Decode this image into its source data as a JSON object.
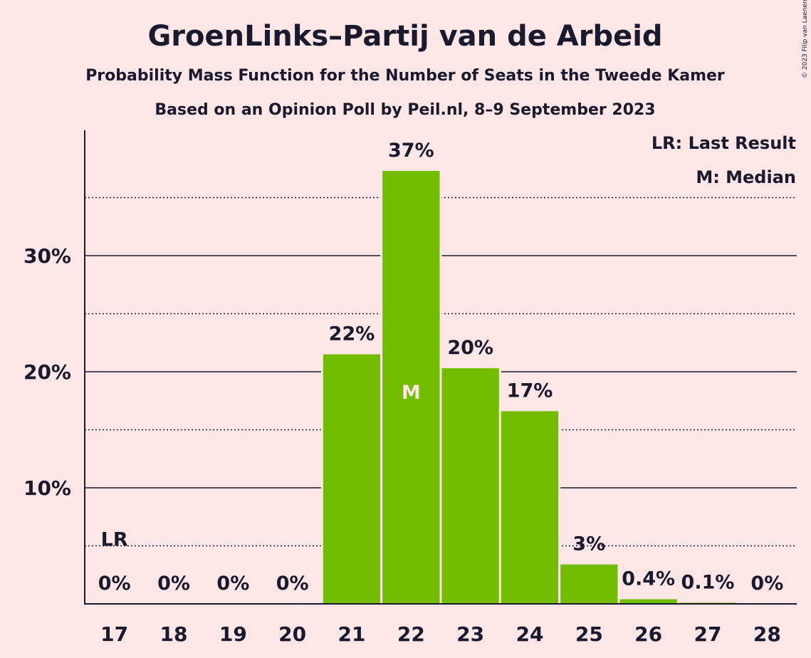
{
  "title": "GroenLinks–Partij van de Arbeid",
  "subtitle1": "Probability Mass Function for the Number of Seats in the Tweede Kamer",
  "subtitle2": "Based on an Opinion Poll by Peil.nl, 8–9 September 2023",
  "copyright": "© 2023 Filip van Laenen",
  "legend": {
    "lr": "LR: Last Result",
    "median": "M: Median"
  },
  "colors": {
    "bar": "#73BD00",
    "background": "#FCE6E6",
    "text": "#1a1a2e",
    "median_label": "#FCE6E6"
  },
  "chart_data": {
    "type": "bar",
    "categories": [
      "17",
      "18",
      "19",
      "20",
      "21",
      "22",
      "23",
      "24",
      "25",
      "26",
      "27",
      "28"
    ],
    "values": [
      0,
      0,
      0,
      0,
      21.5,
      37.3,
      20.3,
      16.6,
      3.4,
      0.4,
      0.1,
      0
    ],
    "value_labels": [
      "0%",
      "0%",
      "0%",
      "0%",
      "22%",
      "37%",
      "20%",
      "17%",
      "3%",
      "0.4%",
      "0.1%",
      "0%"
    ],
    "ylim": [
      0,
      40
    ],
    "yticks": [
      10,
      20,
      30
    ],
    "ytick_labels": [
      "10%",
      "20%",
      "30%"
    ],
    "minor_gridlines": [
      5,
      15,
      25,
      35
    ],
    "last_result": {
      "category": "17",
      "label": "LR",
      "level": 5
    },
    "median": {
      "category": "22",
      "label": "M"
    }
  }
}
